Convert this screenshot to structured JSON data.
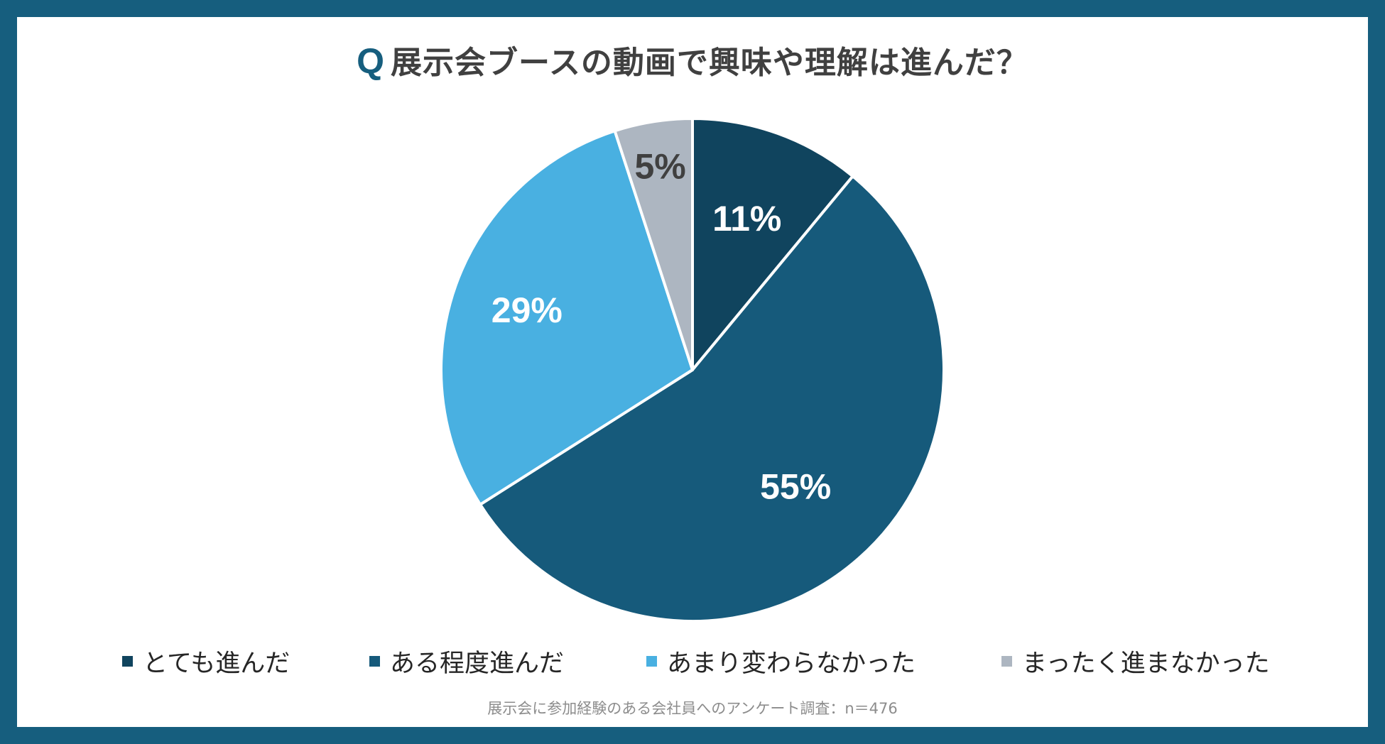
{
  "title": {
    "prefix": "Q",
    "text": "展示会ブースの動画で興味や理解は進んだ？"
  },
  "chart_data": {
    "type": "pie",
    "title": "Q展示会ブースの動画で興味や理解は進んだ？",
    "categories": [
      "とても進んだ",
      "ある程度進んだ",
      "あまり変わらなかった",
      "まったく進まなかった"
    ],
    "values": [
      11,
      55,
      29,
      5
    ],
    "labels": [
      "11%",
      "55%",
      "29%",
      "5%"
    ],
    "colors": [
      "#10445e",
      "#165a7b",
      "#49b0e1",
      "#adb6c1"
    ],
    "label_colors": [
      "#ffffff",
      "#ffffff",
      "#ffffff",
      "#404040"
    ],
    "start": "12 o'clock, clockwise",
    "legend_position": "bottom"
  },
  "footnote": "展示会に参加経験のある会社員へのアンケート調査：n＝476"
}
